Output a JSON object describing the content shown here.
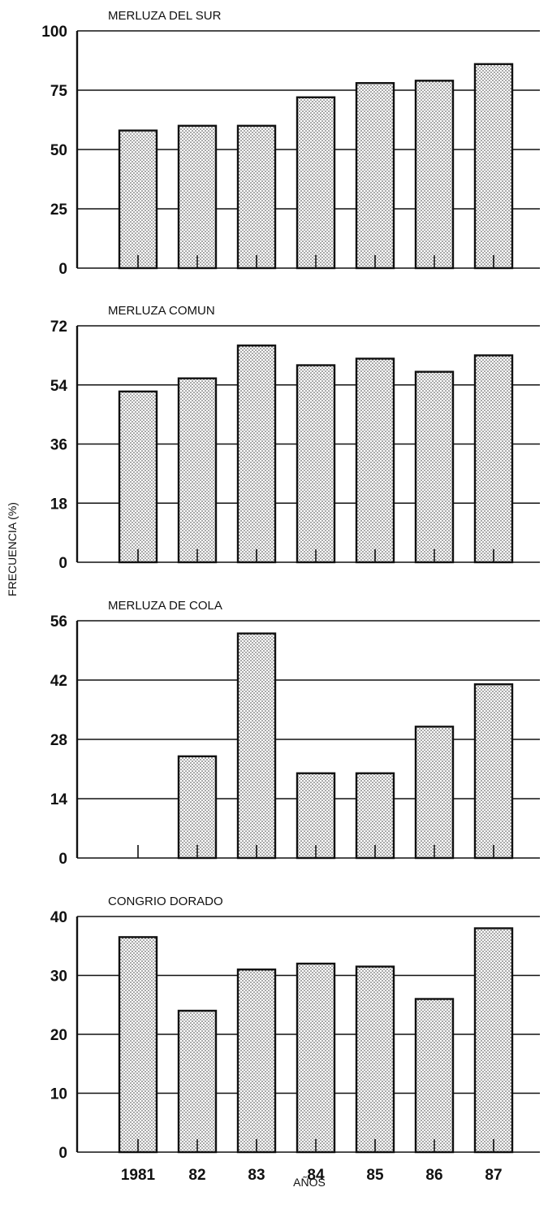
{
  "chart_data": {
    "type": "bar",
    "ylabel": "FRECUENCIA (%)",
    "xlabel": "AÑOS",
    "categories": [
      "1981",
      "82",
      "83",
      "84",
      "85",
      "86",
      "87"
    ],
    "panels": [
      {
        "title": "MERLUZA DEL SUR",
        "ylim": [
          0,
          100
        ],
        "yticks": [
          "0",
          "25",
          "50",
          "75",
          "100"
        ],
        "values": [
          58,
          60,
          60,
          72,
          78,
          79,
          86
        ]
      },
      {
        "title": "MERLUZA COMUN",
        "ylim": [
          0,
          72
        ],
        "yticks": [
          "0",
          "18",
          "36",
          "54",
          "72"
        ],
        "values": [
          52,
          56,
          66,
          60,
          62,
          58,
          63
        ]
      },
      {
        "title": "MERLUZA DE COLA",
        "ylim": [
          0,
          56
        ],
        "yticks": [
          "0",
          "14",
          "28",
          "42",
          "56"
        ],
        "values": [
          0,
          24,
          53,
          20,
          20,
          31,
          41
        ]
      },
      {
        "title": "CONGRIO DORADO",
        "ylim": [
          0,
          40
        ],
        "yticks": [
          "0",
          "10",
          "20",
          "30",
          "40"
        ],
        "values": [
          36.5,
          24,
          31,
          32,
          31.5,
          26,
          38
        ]
      }
    ],
    "grid": true,
    "bar_pattern": "stippled",
    "colors": {
      "bar_fill": "#ffffff",
      "bar_dots": "#333333",
      "ink": "#111111"
    }
  }
}
